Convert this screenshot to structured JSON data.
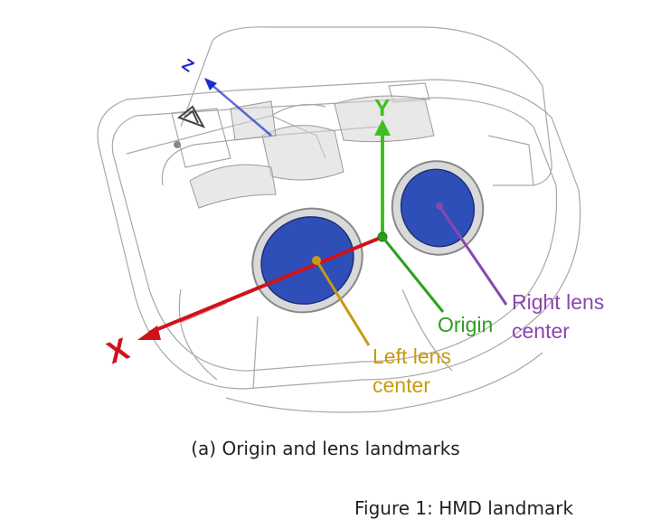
{
  "colors": {
    "x_axis": "#d0121b",
    "y_axis": "#3fbf1f",
    "z_axis": "#1a2fc9",
    "lens": "#2f4fb8",
    "origin": "#2ca01c",
    "left_lens": "#c89a10",
    "right_lens": "#8a46b0",
    "outline": "#9a9a9a"
  },
  "axes": {
    "x": "X",
    "y": "Y",
    "z": "Z"
  },
  "labels": {
    "origin": "Origin",
    "left_lens_line1": "Left lens",
    "left_lens_line2": "center",
    "right_lens_line1": "Right lens",
    "right_lens_line2": "center"
  },
  "caption": "(a) Origin and lens landmarks",
  "figure_title": "Figure 1: HMD landmark"
}
